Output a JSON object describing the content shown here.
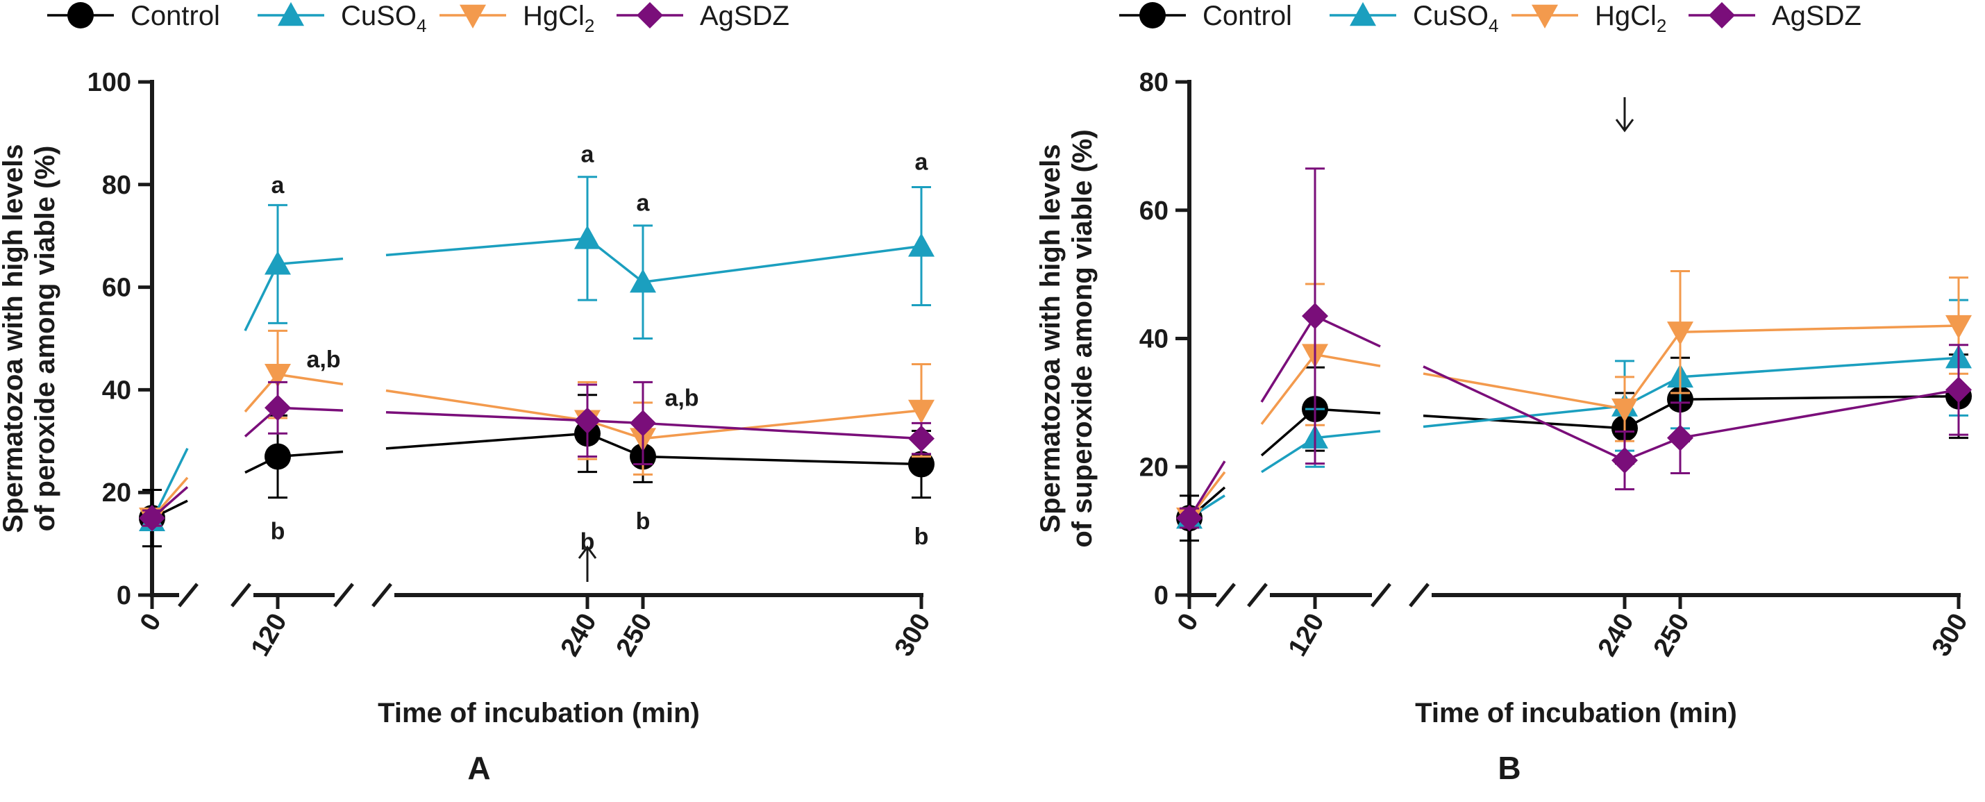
{
  "legend": {
    "items": [
      {
        "key": "control",
        "label": "Control",
        "color": "#000000",
        "marker": "circle"
      },
      {
        "key": "cuso4",
        "label": "CuSO",
        "sub": "4",
        "color": "#1B9FBF",
        "marker": "triangle-up"
      },
      {
        "key": "hgcl2",
        "label": "HgCl",
        "sub": "2",
        "color": "#F39A4D",
        "marker": "triangle-down"
      },
      {
        "key": "agsdz",
        "label": "AgSDZ",
        "color": "#7A0E7A",
        "marker": "diamond"
      }
    ]
  },
  "chart_data": [
    {
      "panel": "A",
      "type": "line",
      "title": "",
      "xlabel": "Time of incubation (min)",
      "ylabel_line1": "Spermatozoa with high levels",
      "ylabel_line2": "of peroxide among viable (%)",
      "ylim": [
        0,
        100
      ],
      "yticks": [
        0,
        20,
        40,
        60,
        80,
        100
      ],
      "xticks": [
        0,
        120,
        240,
        250,
        300
      ],
      "x": [
        0,
        120,
        240,
        250,
        300
      ],
      "series": [
        {
          "name": "Control",
          "key": "control",
          "values": [
            15,
            27,
            31.5,
            27,
            25.5
          ],
          "err": [
            5.5,
            8,
            7.5,
            5,
            6.5
          ]
        },
        {
          "name": "CuSO4",
          "key": "cuso4",
          "values": [
            14.5,
            64.5,
            69.5,
            61,
            68
          ],
          "err": [
            1.5,
            11.5,
            12,
            11,
            11.5
          ]
        },
        {
          "name": "HgCl2",
          "key": "hgcl2",
          "values": [
            15,
            43,
            34,
            30.5,
            36
          ],
          "err": [
            1.5,
            8.5,
            7.5,
            7,
            9
          ]
        },
        {
          "name": "AgSDZ",
          "key": "agsdz",
          "values": [
            15,
            36.5,
            34,
            33.5,
            30.5
          ],
          "err": [
            1.5,
            5,
            7,
            8,
            3
          ]
        }
      ],
      "annotations": [
        {
          "x": 120,
          "y": 80,
          "text": "a"
        },
        {
          "x": 140,
          "y": 46,
          "text": "a,b"
        },
        {
          "x": 120,
          "y": 12.5,
          "text": "b"
        },
        {
          "x": 240,
          "y": 86,
          "text": "a"
        },
        {
          "x": 240,
          "y": 10.5,
          "text": "b"
        },
        {
          "x": 250,
          "y": 76.5,
          "text": "a"
        },
        {
          "x": 265,
          "y": 38.5,
          "text": "a,b"
        },
        {
          "x": 250,
          "y": 14.5,
          "text": "b"
        },
        {
          "x": 300,
          "y": 84.5,
          "text": "a"
        },
        {
          "x": 300,
          "y": 11.5,
          "text": "b"
        }
      ],
      "arrow": {
        "x": 240,
        "direction": "up"
      },
      "panel_label": "A"
    },
    {
      "panel": "B",
      "type": "line",
      "title": "",
      "xlabel": "Time of incubation (min)",
      "ylabel_line1": "Spermatozoa with high levels",
      "ylabel_line2": "of superoxide among viable (%)",
      "ylim": [
        0,
        80
      ],
      "yticks": [
        0,
        20,
        40,
        60,
        80
      ],
      "xticks": [
        0,
        120,
        240,
        250,
        300
      ],
      "x": [
        0,
        120,
        240,
        250,
        300
      ],
      "series": [
        {
          "name": "Control",
          "key": "control",
          "values": [
            12,
            29,
            26,
            30.5,
            31
          ],
          "err": [
            3.5,
            6.5,
            5.5,
            6.5,
            6.5
          ]
        },
        {
          "name": "CuSO4",
          "key": "cuso4",
          "values": [
            12,
            24.5,
            29.5,
            34,
            37
          ],
          "err": [
            1.5,
            4.5,
            7,
            8,
            9
          ]
        },
        {
          "name": "HgCl2",
          "key": "hgcl2",
          "values": [
            12,
            37.5,
            29,
            41,
            42
          ],
          "err": [
            1.5,
            11,
            5,
            9.5,
            7.5
          ]
        },
        {
          "name": "AgSDZ",
          "key": "agsdz",
          "values": [
            12,
            43.5,
            21,
            24.5,
            32
          ],
          "err": [
            1.5,
            23,
            4.5,
            5.5,
            7
          ]
        }
      ],
      "annotations": [],
      "arrow": {
        "x": 240,
        "direction": "down"
      },
      "panel_label": "B"
    }
  ]
}
